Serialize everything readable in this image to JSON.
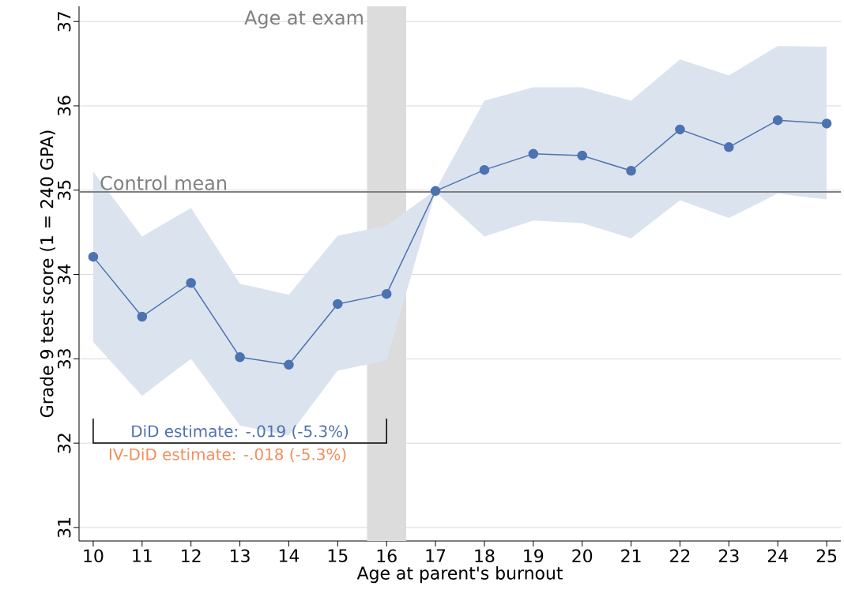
{
  "chart_data": {
    "type": "line",
    "xlabel": "Age at parent's burnout",
    "ylabel": "Grade 9 test score (1 = 240 GPA)",
    "x": [
      10,
      11,
      12,
      13,
      14,
      15,
      16,
      17,
      18,
      19,
      20,
      21,
      22,
      23,
      24,
      25
    ],
    "series": [
      {
        "color": "#4c72b0",
        "values": [
          34.21,
          33.5,
          33.9,
          33.02,
          32.93,
          33.65,
          33.77,
          34.99,
          35.24,
          35.43,
          35.41,
          35.23,
          35.72,
          35.51,
          35.83,
          35.79
        ],
        "upper": [
          35.22,
          34.45,
          34.79,
          33.89,
          33.76,
          34.46,
          34.58,
          35.0,
          36.06,
          36.22,
          36.22,
          36.06,
          36.55,
          36.36,
          36.71,
          36.7
        ],
        "lower": [
          33.2,
          32.56,
          33.0,
          32.21,
          32.09,
          32.86,
          32.98,
          34.98,
          34.45,
          34.64,
          34.61,
          34.43,
          34.88,
          34.67,
          34.96,
          34.89
        ]
      }
    ],
    "marker": "circle",
    "line_style": "solid",
    "grid": "y",
    "xlim": [
      9.71,
      25.29
    ],
    "ylim": [
      30.84,
      37.18
    ],
    "xticks": [
      10,
      11,
      12,
      13,
      14,
      15,
      16,
      17,
      18,
      19,
      20,
      21,
      22,
      23,
      24,
      25
    ],
    "yticks": [
      31,
      32,
      33,
      34,
      35,
      36,
      37
    ],
    "ref_lines": [
      {
        "axis": "y",
        "value": 34.98,
        "label": "Control mean",
        "color": "#808080"
      }
    ],
    "bands": [
      {
        "axis": "x",
        "from": 15.6,
        "to": 16.4,
        "label": "Age at exam",
        "color": "#dcdcdc"
      }
    ],
    "annotations": [
      "DiD estimate: -.019 (-5.3%)",
      "IV-DiD estimate: -.018 (-5.3%)"
    ]
  }
}
